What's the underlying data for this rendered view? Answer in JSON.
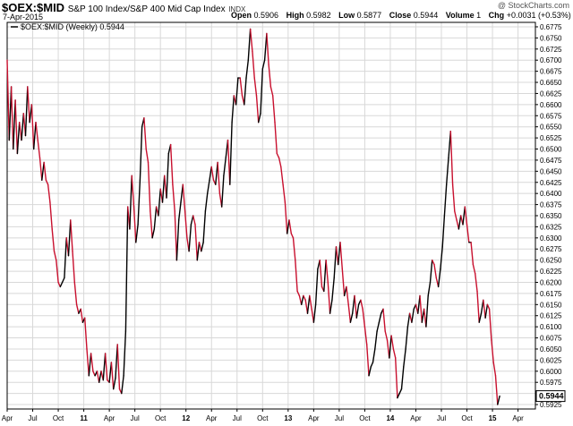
{
  "header": {
    "symbol": "$OEX:$MID",
    "description": "S&P 100 Index/S&P 400 Mid Cap Index",
    "exchange": "INDX",
    "date": "7-Apr-2015",
    "credit": "@ StockCharts.com",
    "ohlc": {
      "open_label": "Open",
      "open": "0.5906",
      "high_label": "High",
      "high": "0.5982",
      "low_label": "Low",
      "low": "0.5877",
      "close_label": "Close",
      "close": "0.5944",
      "volume_label": "Volume",
      "volume": "1",
      "chg_label": "Chg",
      "chg": "+0.0031 (+0.53%)",
      "chg_arrow": "▲"
    }
  },
  "legend": {
    "label": "$OEX:$MID (Weekly) 0.5944"
  },
  "last_value_label": "0.5944",
  "colors": {
    "up": "#000000",
    "down": "#c8102e",
    "grid": "#d8d8d8",
    "axis": "#000000"
  },
  "chart_data": {
    "type": "line",
    "ylim": [
      0.5915,
      0.6785
    ],
    "y_ticks": [
      "0.5925",
      "0.5950",
      "0.5975",
      "0.6000",
      "0.6025",
      "0.6050",
      "0.6075",
      "0.6100",
      "0.6125",
      "0.6150",
      "0.6175",
      "0.6200",
      "0.6225",
      "0.6250",
      "0.6275",
      "0.6300",
      "0.6325",
      "0.6350",
      "0.6375",
      "0.6400",
      "0.6425",
      "0.6450",
      "0.6475",
      "0.6500",
      "0.6525",
      "0.6550",
      "0.6575",
      "0.6600",
      "0.6625",
      "0.6650",
      "0.6675",
      "0.6700",
      "0.6725",
      "0.6750",
      "0.6775"
    ],
    "x_ticks": [
      {
        "label": "Apr",
        "t": 0.0,
        "year": false
      },
      {
        "label": "Jul",
        "t": 0.25,
        "year": false
      },
      {
        "label": "Oct",
        "t": 0.5,
        "year": false
      },
      {
        "label": "11",
        "t": 0.75,
        "year": true
      },
      {
        "label": "Apr",
        "t": 1.0,
        "year": false
      },
      {
        "label": "Jul",
        "t": 1.25,
        "year": false
      },
      {
        "label": "Oct",
        "t": 1.5,
        "year": false
      },
      {
        "label": "12",
        "t": 1.75,
        "year": true
      },
      {
        "label": "Apr",
        "t": 2.0,
        "year": false
      },
      {
        "label": "Jul",
        "t": 2.25,
        "year": false
      },
      {
        "label": "Oct",
        "t": 2.5,
        "year": false
      },
      {
        "label": "13",
        "t": 2.75,
        "year": true
      },
      {
        "label": "Apr",
        "t": 3.0,
        "year": false
      },
      {
        "label": "Jul",
        "t": 3.25,
        "year": false
      },
      {
        "label": "Oct",
        "t": 3.5,
        "year": false
      },
      {
        "label": "14",
        "t": 3.75,
        "year": true
      },
      {
        "label": "Apr",
        "t": 4.0,
        "year": false
      },
      {
        "label": "Jul",
        "t": 4.25,
        "year": false
      },
      {
        "label": "Oct",
        "t": 4.5,
        "year": false
      },
      {
        "label": "15",
        "t": 4.75,
        "year": true
      },
      {
        "label": "Apr",
        "t": 5.0,
        "year": false
      }
    ],
    "series": [
      {
        "style": "weekly close, black rising / red falling",
        "points": [
          [
            0.0,
            0.67
          ],
          [
            0.02,
            0.652
          ],
          [
            0.04,
            0.664
          ],
          [
            0.06,
            0.65
          ],
          [
            0.08,
            0.661
          ],
          [
            0.1,
            0.649
          ],
          [
            0.12,
            0.656
          ],
          [
            0.14,
            0.652
          ],
          [
            0.16,
            0.658
          ],
          [
            0.18,
            0.653
          ],
          [
            0.2,
            0.664
          ],
          [
            0.22,
            0.656
          ],
          [
            0.24,
            0.66
          ],
          [
            0.26,
            0.65
          ],
          [
            0.28,
            0.656
          ],
          [
            0.3,
            0.652
          ],
          [
            0.32,
            0.648
          ],
          [
            0.34,
            0.643
          ],
          [
            0.36,
            0.647
          ],
          [
            0.38,
            0.643
          ],
          [
            0.4,
            0.642
          ],
          [
            0.42,
            0.638
          ],
          [
            0.44,
            0.632
          ],
          [
            0.46,
            0.627
          ],
          [
            0.48,
            0.625
          ],
          [
            0.5,
            0.62
          ],
          [
            0.52,
            0.619
          ],
          [
            0.54,
            0.62
          ],
          [
            0.56,
            0.621
          ],
          [
            0.58,
            0.63
          ],
          [
            0.6,
            0.626
          ],
          [
            0.62,
            0.634
          ],
          [
            0.64,
            0.627
          ],
          [
            0.66,
            0.62
          ],
          [
            0.68,
            0.615
          ],
          [
            0.7,
            0.613
          ],
          [
            0.72,
            0.614
          ],
          [
            0.74,
            0.611
          ],
          [
            0.76,
            0.612
          ],
          [
            0.78,
            0.605
          ],
          [
            0.8,
            0.599
          ],
          [
            0.82,
            0.604
          ],
          [
            0.84,
            0.6
          ],
          [
            0.86,
            0.599
          ],
          [
            0.88,
            0.6
          ],
          [
            0.9,
            0.5975
          ],
          [
            0.92,
            0.6
          ],
          [
            0.94,
            0.598
          ],
          [
            0.96,
            0.604
          ],
          [
            0.98,
            0.598
          ],
          [
            1.0,
            0.5975
          ],
          [
            1.02,
            0.602
          ],
          [
            1.04,
            0.596
          ],
          [
            1.06,
            0.5985
          ],
          [
            1.08,
            0.606
          ],
          [
            1.1,
            0.596
          ],
          [
            1.12,
            0.595
          ],
          [
            1.14,
            0.599
          ],
          [
            1.16,
            0.609
          ],
          [
            1.18,
            0.637
          ],
          [
            1.2,
            0.632
          ],
          [
            1.22,
            0.644
          ],
          [
            1.24,
            0.637
          ],
          [
            1.26,
            0.629
          ],
          [
            1.28,
            0.633
          ],
          [
            1.3,
            0.643
          ],
          [
            1.32,
            0.655
          ],
          [
            1.34,
            0.657
          ],
          [
            1.36,
            0.65
          ],
          [
            1.38,
            0.647
          ],
          [
            1.4,
            0.636
          ],
          [
            1.42,
            0.63
          ],
          [
            1.44,
            0.632
          ],
          [
            1.46,
            0.637
          ],
          [
            1.48,
            0.635
          ],
          [
            1.5,
            0.641
          ],
          [
            1.52,
            0.638
          ],
          [
            1.54,
            0.644
          ],
          [
            1.56,
            0.639
          ],
          [
            1.58,
            0.649
          ],
          [
            1.6,
            0.651
          ],
          [
            1.62,
            0.642
          ],
          [
            1.64,
            0.636
          ],
          [
            1.66,
            0.625
          ],
          [
            1.68,
            0.634
          ],
          [
            1.7,
            0.638
          ],
          [
            1.72,
            0.642
          ],
          [
            1.74,
            0.636
          ],
          [
            1.76,
            0.63
          ],
          [
            1.78,
            0.627
          ],
          [
            1.8,
            0.633
          ],
          [
            1.82,
            0.635
          ],
          [
            1.84,
            0.633
          ],
          [
            1.86,
            0.625
          ],
          [
            1.88,
            0.629
          ],
          [
            1.9,
            0.627
          ],
          [
            1.92,
            0.629
          ],
          [
            1.94,
            0.636
          ],
          [
            1.96,
            0.64
          ],
          [
            1.98,
            0.643
          ],
          [
            2.0,
            0.646
          ],
          [
            2.02,
            0.643
          ],
          [
            2.04,
            0.642
          ],
          [
            2.06,
            0.647
          ],
          [
            2.08,
            0.64
          ],
          [
            2.1,
            0.637
          ],
          [
            2.12,
            0.644
          ],
          [
            2.14,
            0.648
          ],
          [
            2.16,
            0.652
          ],
          [
            2.18,
            0.642
          ],
          [
            2.2,
            0.656
          ],
          [
            2.22,
            0.662
          ],
          [
            2.24,
            0.66
          ],
          [
            2.26,
            0.666
          ],
          [
            2.28,
            0.666
          ],
          [
            2.3,
            0.662
          ],
          [
            2.32,
            0.66
          ],
          [
            2.34,
            0.666
          ],
          [
            2.36,
            0.67
          ],
          [
            2.38,
            0.677
          ],
          [
            2.4,
            0.672
          ],
          [
            2.42,
            0.666
          ],
          [
            2.44,
            0.662
          ],
          [
            2.46,
            0.656
          ],
          [
            2.48,
            0.658
          ],
          [
            2.5,
            0.668
          ],
          [
            2.52,
            0.67
          ],
          [
            2.54,
            0.676
          ],
          [
            2.56,
            0.669
          ],
          [
            2.58,
            0.664
          ],
          [
            2.6,
            0.662
          ],
          [
            2.62,
            0.656
          ],
          [
            2.64,
            0.649
          ],
          [
            2.66,
            0.648
          ],
          [
            2.68,
            0.646
          ],
          [
            2.7,
            0.642
          ],
          [
            2.72,
            0.638
          ],
          [
            2.74,
            0.631
          ],
          [
            2.76,
            0.634
          ],
          [
            2.78,
            0.631
          ],
          [
            2.8,
            0.63
          ],
          [
            2.82,
            0.625
          ],
          [
            2.84,
            0.618
          ],
          [
            2.86,
            0.617
          ],
          [
            2.88,
            0.615
          ],
          [
            2.9,
            0.617
          ],
          [
            2.92,
            0.616
          ],
          [
            2.94,
            0.613
          ],
          [
            2.96,
            0.617
          ],
          [
            2.98,
            0.614
          ],
          [
            3.0,
            0.611
          ],
          [
            3.02,
            0.615
          ],
          [
            3.04,
            0.623
          ],
          [
            3.06,
            0.625
          ],
          [
            3.08,
            0.619
          ],
          [
            3.1,
            0.618
          ],
          [
            3.12,
            0.625
          ],
          [
            3.14,
            0.62
          ],
          [
            3.16,
            0.613
          ],
          [
            3.18,
            0.616
          ],
          [
            3.2,
            0.621
          ],
          [
            3.22,
            0.628
          ],
          [
            3.24,
            0.624
          ],
          [
            3.26,
            0.629
          ],
          [
            3.28,
            0.623
          ],
          [
            3.3,
            0.617
          ],
          [
            3.32,
            0.619
          ],
          [
            3.34,
            0.615
          ],
          [
            3.36,
            0.611
          ],
          [
            3.38,
            0.613
          ],
          [
            3.4,
            0.617
          ],
          [
            3.42,
            0.612
          ],
          [
            3.44,
            0.615
          ],
          [
            3.46,
            0.616
          ],
          [
            3.48,
            0.614
          ],
          [
            3.5,
            0.61
          ],
          [
            3.52,
            0.606
          ],
          [
            3.54,
            0.599
          ],
          [
            3.56,
            0.601
          ],
          [
            3.58,
            0.602
          ],
          [
            3.6,
            0.605
          ],
          [
            3.62,
            0.609
          ],
          [
            3.64,
            0.611
          ],
          [
            3.66,
            0.613
          ],
          [
            3.68,
            0.614
          ],
          [
            3.7,
            0.609
          ],
          [
            3.72,
            0.607
          ],
          [
            3.74,
            0.603
          ],
          [
            3.76,
            0.608
          ],
          [
            3.78,
            0.605
          ],
          [
            3.8,
            0.603
          ],
          [
            3.82,
            0.594
          ],
          [
            3.84,
            0.595
          ],
          [
            3.86,
            0.596
          ],
          [
            3.88,
            0.601
          ],
          [
            3.9,
            0.605
          ],
          [
            3.92,
            0.61
          ],
          [
            3.94,
            0.613
          ],
          [
            3.96,
            0.611
          ],
          [
            3.98,
            0.614
          ],
          [
            4.0,
            0.615
          ],
          [
            4.02,
            0.613
          ],
          [
            4.04,
            0.617
          ],
          [
            4.06,
            0.611
          ],
          [
            4.08,
            0.614
          ],
          [
            4.1,
            0.61
          ],
          [
            4.12,
            0.617
          ],
          [
            4.14,
            0.62
          ],
          [
            4.16,
            0.625
          ],
          [
            4.18,
            0.624
          ],
          [
            4.2,
            0.621
          ],
          [
            4.22,
            0.619
          ],
          [
            4.24,
            0.623
          ],
          [
            4.26,
            0.628
          ],
          [
            4.28,
            0.635
          ],
          [
            4.3,
            0.642
          ],
          [
            4.32,
            0.648
          ],
          [
            4.34,
            0.654
          ],
          [
            4.36,
            0.642
          ],
          [
            4.38,
            0.636
          ],
          [
            4.4,
            0.634
          ],
          [
            4.42,
            0.632
          ],
          [
            4.44,
            0.635
          ],
          [
            4.46,
            0.633
          ],
          [
            4.48,
            0.637
          ],
          [
            4.5,
            0.633
          ],
          [
            4.52,
            0.629
          ],
          [
            4.54,
            0.629
          ],
          [
            4.56,
            0.624
          ],
          [
            4.58,
            0.622
          ],
          [
            4.6,
            0.618
          ],
          [
            4.62,
            0.611
          ],
          [
            4.64,
            0.613
          ],
          [
            4.66,
            0.616
          ],
          [
            4.68,
            0.612
          ],
          [
            4.7,
            0.615
          ],
          [
            4.72,
            0.614
          ],
          [
            4.74,
            0.607
          ],
          [
            4.76,
            0.602
          ],
          [
            4.78,
            0.599
          ],
          [
            4.8,
            0.5925
          ],
          [
            4.82,
            0.5944
          ]
        ]
      }
    ]
  }
}
